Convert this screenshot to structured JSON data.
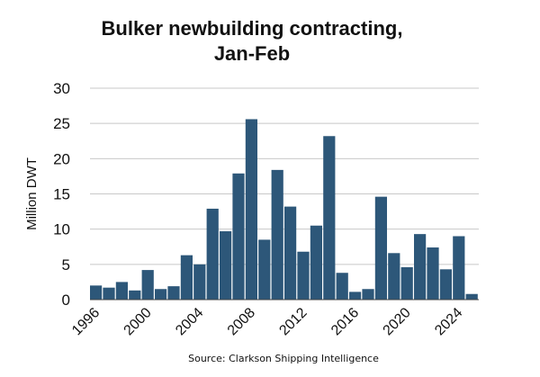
{
  "chart_data": {
    "type": "bar",
    "title_line1": "Bulker newbuilding contracting,",
    "title_line2": "Jan-Feb",
    "ylabel": "Million DWT",
    "xlabel": "",
    "ylim": [
      0,
      30
    ],
    "yticks": [
      0,
      5,
      10,
      15,
      20,
      25,
      30
    ],
    "xtick_labels": [
      "1996",
      "2000",
      "2004",
      "2008",
      "2012",
      "2016",
      "2020",
      "2024"
    ],
    "grid": true,
    "bar_color": "#2d5779",
    "grid_color": "#c8c8c8",
    "source": "Source: Clarkson Shipping Intelligence",
    "categories": [
      "1996",
      "1997",
      "1998",
      "1999",
      "2000",
      "2001",
      "2002",
      "2003",
      "2004",
      "2005",
      "2006",
      "2007",
      "2008",
      "2009",
      "2010",
      "2011",
      "2012",
      "2013",
      "2014",
      "2015",
      "2016",
      "2017",
      "2018",
      "2019",
      "2020",
      "2021",
      "2022",
      "2023",
      "2024",
      "2025"
    ],
    "values": [
      2.0,
      1.7,
      2.5,
      1.3,
      4.2,
      1.5,
      1.9,
      6.3,
      5.0,
      12.9,
      9.7,
      17.9,
      25.6,
      8.5,
      18.4,
      13.2,
      6.8,
      10.5,
      23.2,
      3.8,
      1.1,
      1.5,
      14.6,
      6.6,
      4.6,
      9.3,
      7.4,
      4.3,
      9.0,
      0.8
    ]
  }
}
